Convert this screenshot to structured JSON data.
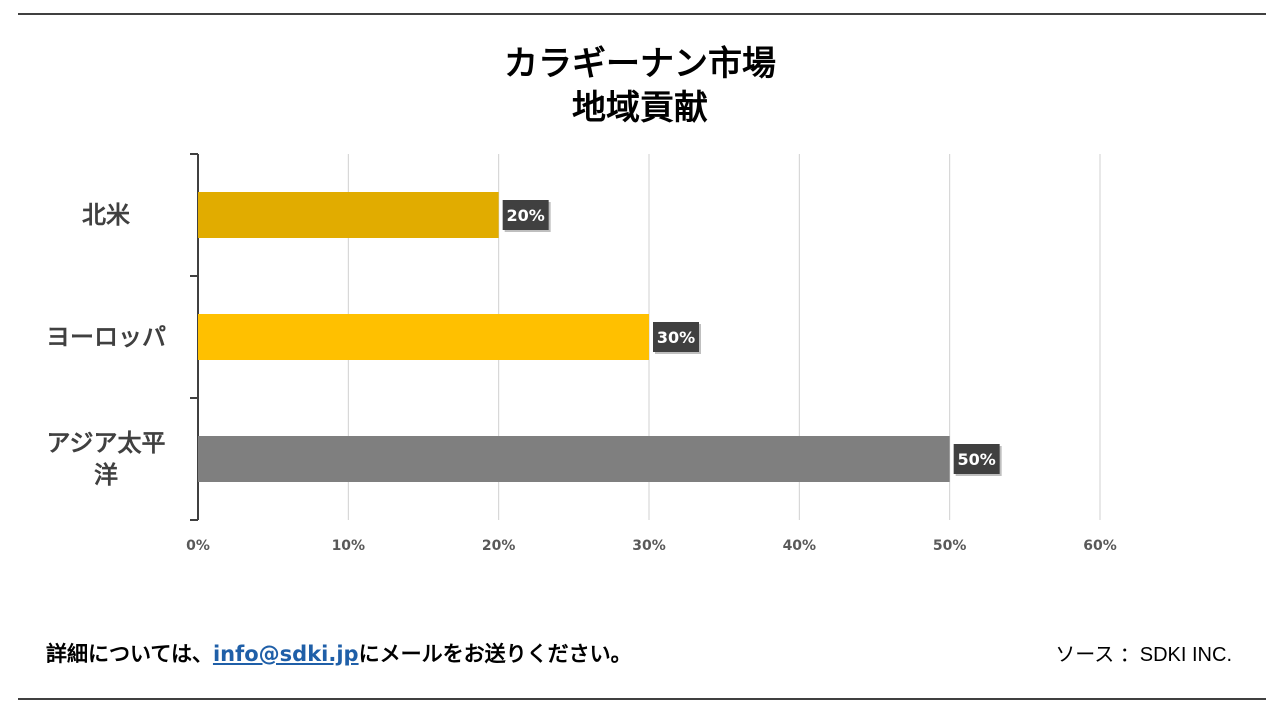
{
  "title": {
    "line1": "カラギーナン市場",
    "line2": "地域貢献"
  },
  "chart_data": {
    "type": "bar",
    "orientation": "horizontal",
    "categories": [
      "北米",
      "ヨーロッパ",
      "アジア太平洋"
    ],
    "category_labels_display": [
      [
        "北米"
      ],
      [
        "ヨーロッパ"
      ],
      [
        "アジア太平",
        "洋"
      ]
    ],
    "values": [
      20,
      30,
      50
    ],
    "data_labels": [
      "20%",
      "30%",
      "50%"
    ],
    "bar_colors": [
      "#e1ac00",
      "#ffc000",
      "#7f7f7f"
    ],
    "x_ticks": [
      "0%",
      "10%",
      "20%",
      "30%",
      "40%",
      "50%",
      "60%"
    ],
    "xlim": [
      0,
      60
    ],
    "grid": true,
    "legend": "none",
    "label_box_color": "#404040"
  },
  "footer": {
    "note_prefix": "詳細については、",
    "email": "info@sdki.jp",
    "note_suffix": "にメールをお送りください。",
    "source": "ソース ：SDKI INC."
  }
}
